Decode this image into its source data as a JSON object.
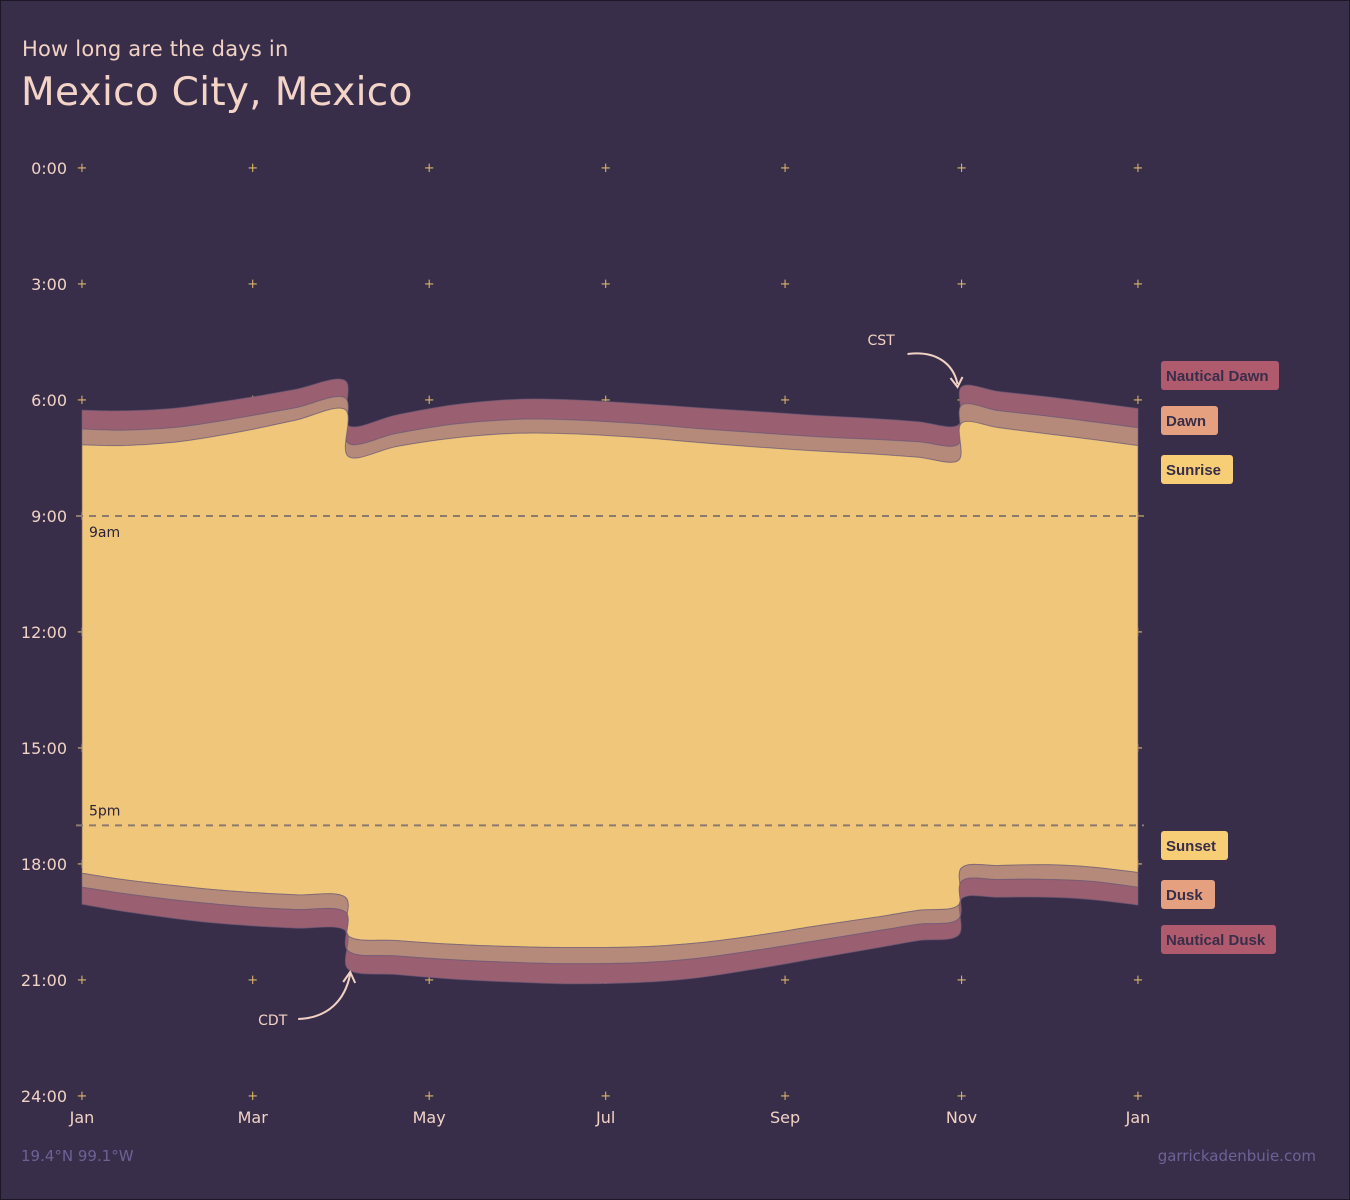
{
  "header": {
    "subtitle": "How long are the days in",
    "title": "Mexico City, Mexico"
  },
  "footer": {
    "coordinates": "19.4°N 99.1°W",
    "credit": "garrickadenbuie.com"
  },
  "chart_data": {
    "type": "area",
    "x_axis": {
      "ticks": [
        "Jan",
        "Mar",
        "May",
        "Jul",
        "Sep",
        "Nov",
        "Jan"
      ],
      "range": [
        1,
        366
      ],
      "tick_days": [
        1,
        60,
        121,
        182,
        244,
        305,
        366
      ]
    },
    "y_axis": {
      "ticks": [
        "0:00",
        "3:00",
        "6:00",
        "9:00",
        "12:00",
        "15:00",
        "18:00",
        "21:00",
        "24:00"
      ],
      "tick_hours": [
        0,
        3,
        6,
        9,
        12,
        15,
        18,
        21,
        24
      ],
      "range": [
        0,
        24
      ],
      "reversed": true
    },
    "reference_lines": [
      {
        "hour": 9,
        "label": "9am"
      },
      {
        "hour": 17,
        "label": "5pm"
      }
    ],
    "annotations": [
      {
        "text": "CST",
        "day": 305
      },
      {
        "text": "CDT",
        "day": 93
      }
    ],
    "colors": {
      "background": "#382e4a",
      "day": "#f0c67a",
      "civil_twilight": "#b68a7a",
      "nautical_twilight": "#9a5f70",
      "text": "#f2d2c4"
    },
    "series": [
      {
        "name": "Nautical Dawn",
        "color": "#b05a6e",
        "days": [
          1,
          93,
          93,
          305,
          305,
          366
        ],
        "values": []
      },
      {
        "name": "Dawn",
        "color": "#e5a07f",
        "values": []
      },
      {
        "name": "Sunrise",
        "color": "#f7cd75",
        "values": []
      },
      {
        "name": "Sunset",
        "color": "#f7cd75",
        "values": []
      },
      {
        "name": "Dusk",
        "color": "#e5a07f",
        "values": []
      },
      {
        "name": "Nautical Dusk",
        "color": "#b05a6e",
        "values": []
      }
    ],
    "curves": {
      "days": [
        1,
        15,
        32,
        46,
        60,
        75,
        92,
        93,
        110,
        130,
        152,
        172,
        195,
        214,
        235,
        255,
        275,
        290,
        304,
        305,
        318,
        335,
        350,
        366
      ],
      "nautical_dawn": [
        6.26,
        6.28,
        6.22,
        6.08,
        5.92,
        5.72,
        5.5,
        6.66,
        6.38,
        6.12,
        5.98,
        6.0,
        6.1,
        6.2,
        6.3,
        6.4,
        6.48,
        6.56,
        6.64,
        5.66,
        5.78,
        5.92,
        6.06,
        6.22
      ],
      "dawn": [
        6.75,
        6.78,
        6.72,
        6.58,
        6.4,
        6.2,
        5.95,
        7.12,
        6.86,
        6.62,
        6.5,
        6.52,
        6.62,
        6.74,
        6.85,
        6.95,
        7.02,
        7.08,
        7.14,
        6.14,
        6.28,
        6.42,
        6.56,
        6.72
      ],
      "sunrise": [
        7.16,
        7.18,
        7.1,
        6.95,
        6.76,
        6.52,
        6.25,
        7.46,
        7.2,
        6.98,
        6.86,
        6.88,
        6.98,
        7.1,
        7.22,
        7.32,
        7.4,
        7.48,
        7.56,
        6.6,
        6.72,
        6.88,
        7.02,
        7.18
      ],
      "sunset": [
        18.24,
        18.4,
        18.55,
        18.66,
        18.74,
        18.8,
        18.86,
        19.86,
        19.98,
        20.08,
        20.14,
        20.16,
        20.14,
        20.04,
        19.84,
        19.6,
        19.38,
        19.2,
        19.06,
        18.1,
        18.04,
        18.02,
        18.08,
        18.22
      ],
      "dusk": [
        18.6,
        18.76,
        18.92,
        19.03,
        19.12,
        19.18,
        19.24,
        20.25,
        20.38,
        20.48,
        20.55,
        20.58,
        20.55,
        20.44,
        20.22,
        19.98,
        19.74,
        19.56,
        19.42,
        18.45,
        18.4,
        18.4,
        18.45,
        18.6
      ],
      "nautical_dusk": [
        19.04,
        19.22,
        19.4,
        19.52,
        19.6,
        19.66,
        19.72,
        20.72,
        20.86,
        20.98,
        21.06,
        21.1,
        21.06,
        20.94,
        20.7,
        20.44,
        20.18,
        19.98,
        19.84,
        18.9,
        18.86,
        18.86,
        18.92,
        19.06
      ]
    }
  }
}
